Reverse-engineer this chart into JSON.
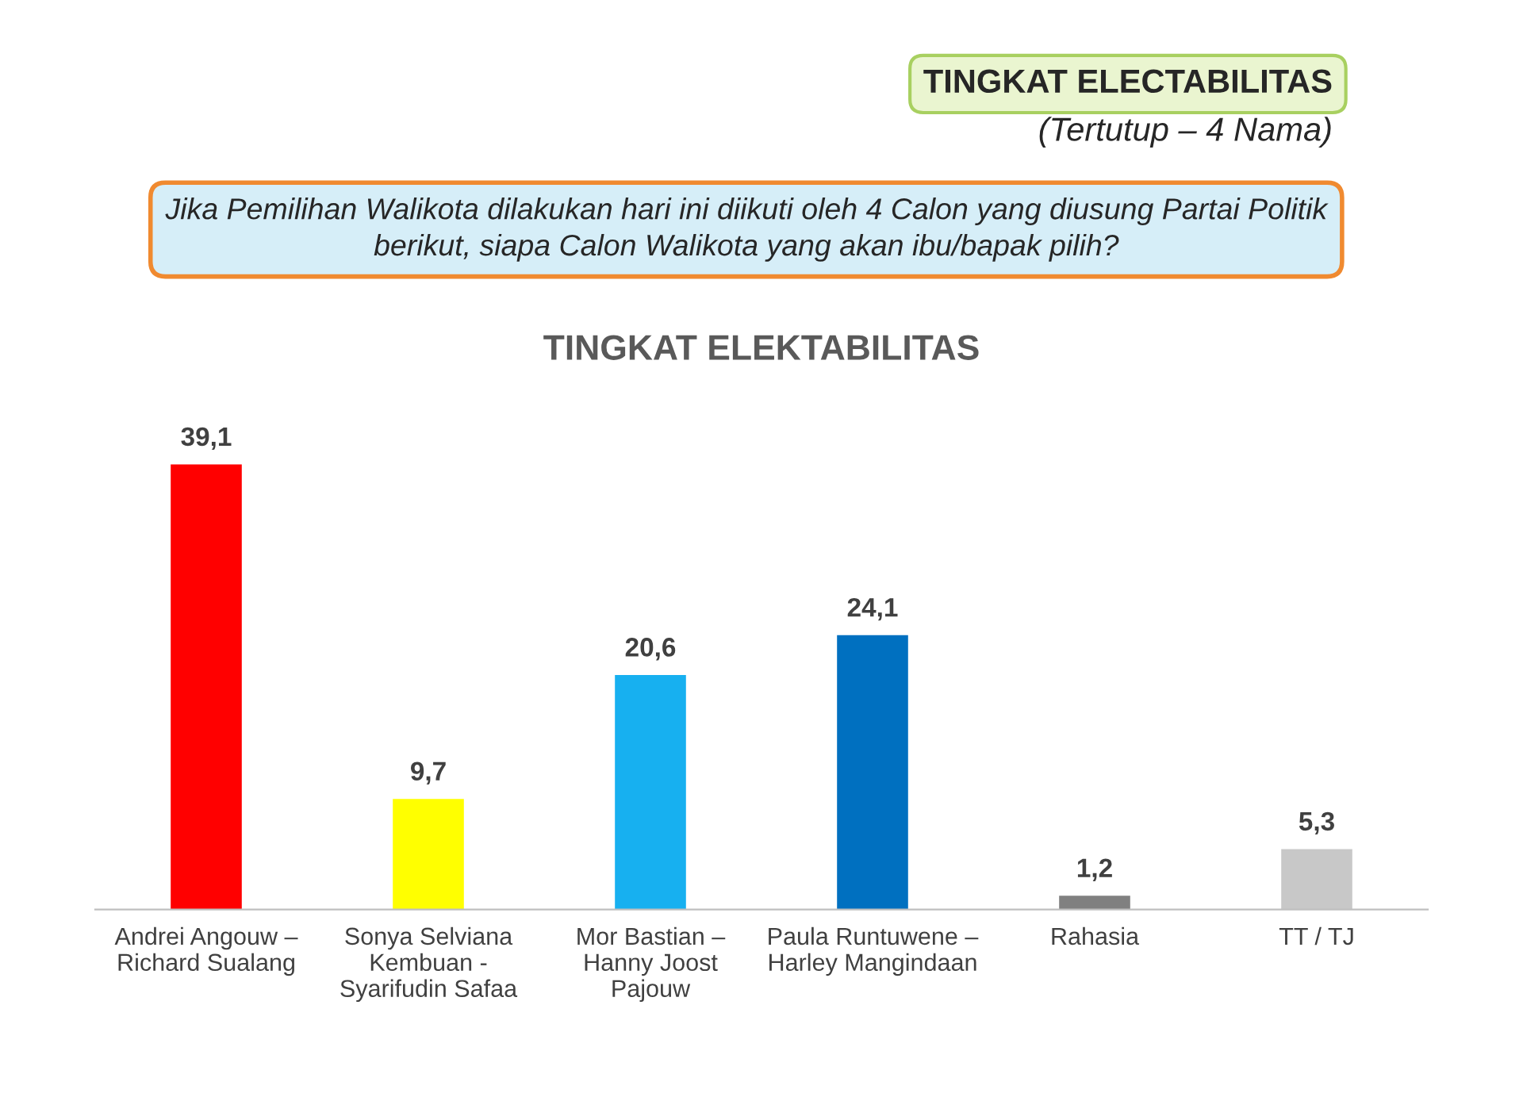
{
  "chart_data": {
    "type": "bar",
    "title": "TINGKAT ELECTABILITAS",
    "subtitle": "(Tertutup – 4 Nama)",
    "annotations": [
      "Jika Pemilihan Walikota dilakukan hari ini diikuti oleh 4 Calon yang diusung Partai Politik\nberikut, siapa Calon Walikota yang akan ibu/bapak pilih?",
      "TINGKAT ELEKTABILITAS"
    ],
    "categories": [
      "Andrei Angouw –\nRichard Sualang",
      "Sonya Selviana\nKembuan -\nSyarifudin Safaa",
      "Mor Bastian –\nHanny Joost\nPajouw",
      "Paula Runtuwene –\nHarley Mangindaan",
      "Rahasia",
      "TT / TJ"
    ],
    "values": [
      39.1,
      9.7,
      20.6,
      24.1,
      1.2,
      5.3
    ],
    "colors": [
      "#ff0000",
      "#ffff00",
      "#17b0f0",
      "#0070c0",
      "#808080",
      "#c8c8c8"
    ],
    "value_labels": [
      "39,1",
      "9,7",
      "20,6",
      "24,1",
      "1,2",
      "5,3"
    ],
    "grid": false,
    "legend": false
  }
}
